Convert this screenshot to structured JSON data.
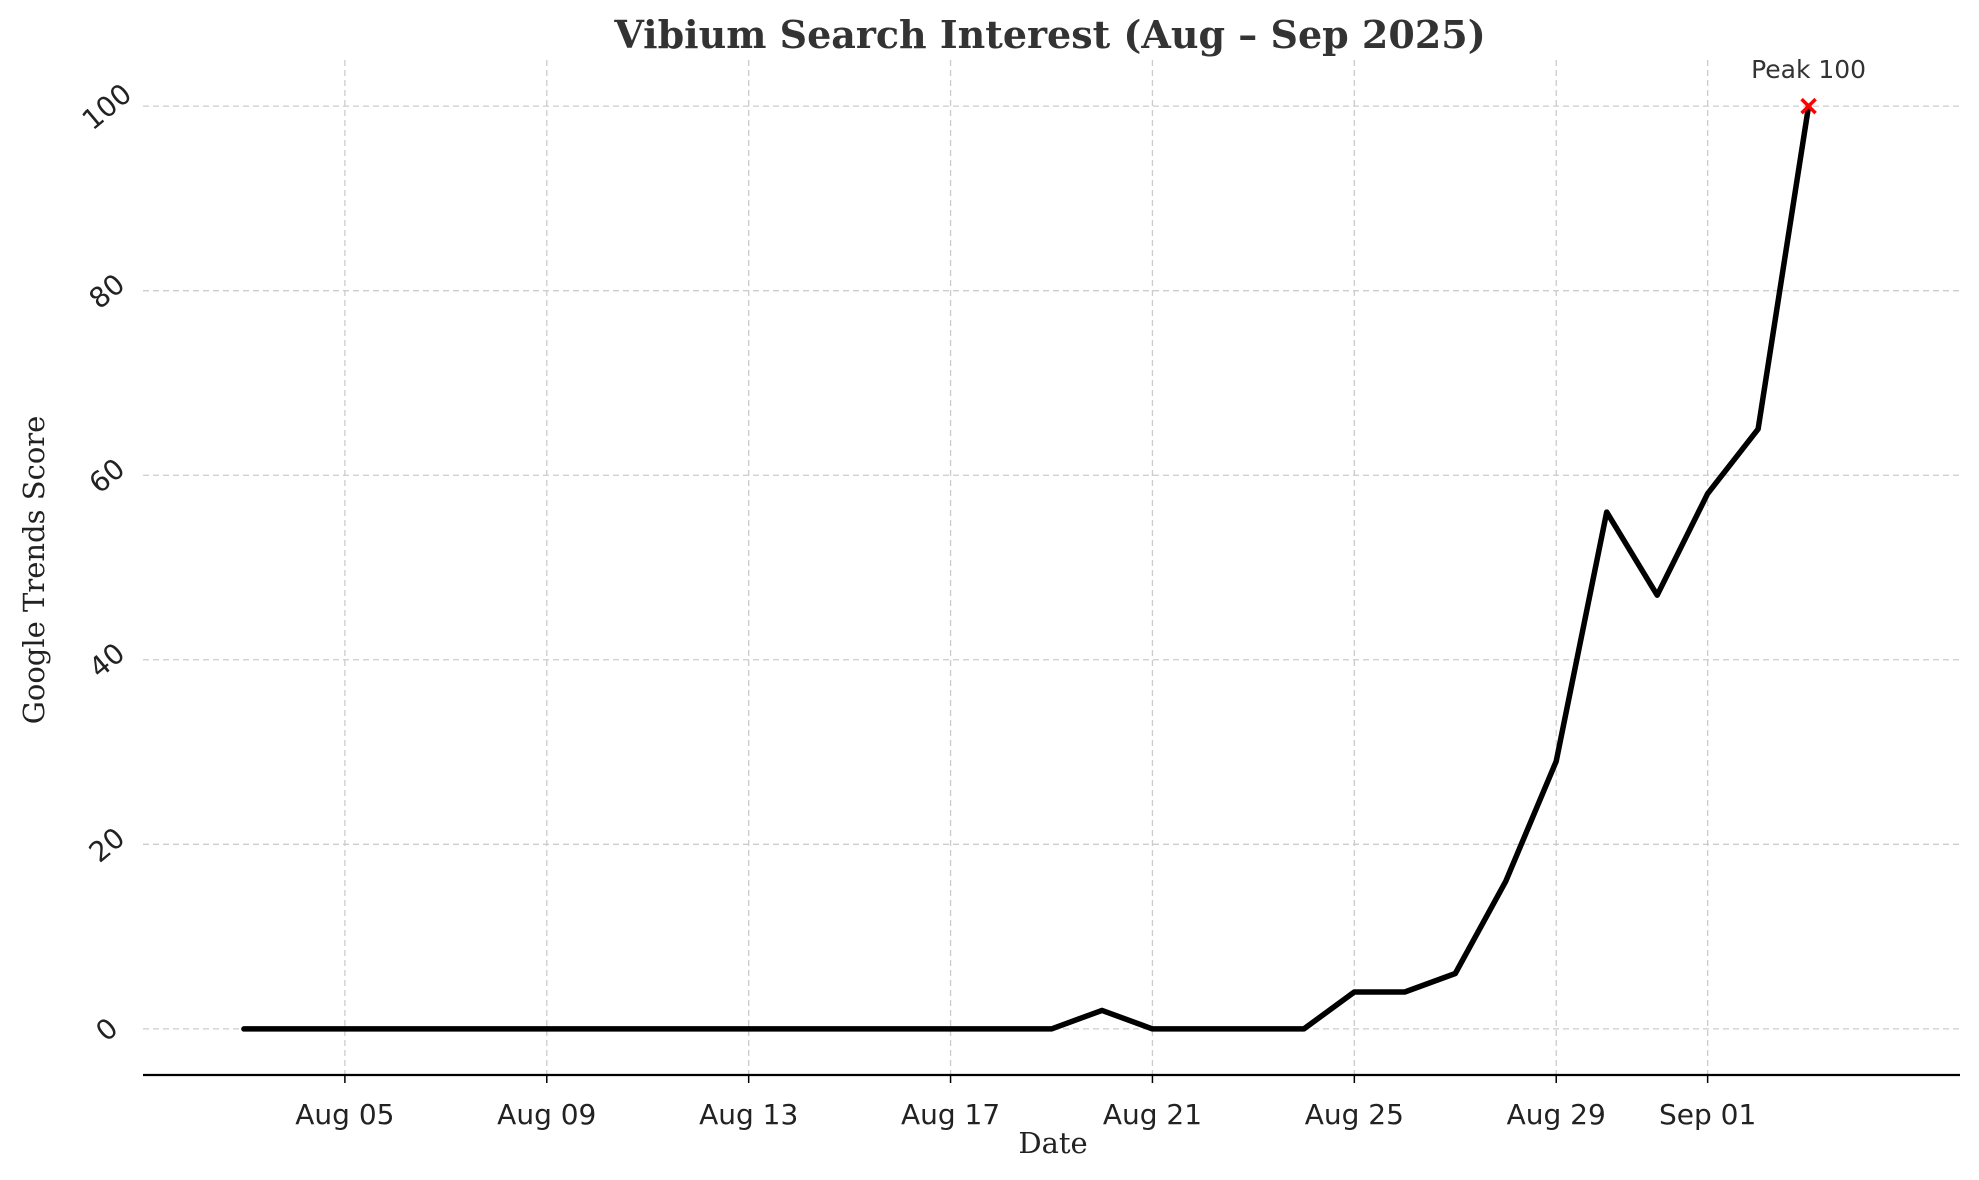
{
  "chart_data": {
    "type": "line",
    "title": "Vibium Search Interest (Aug – Sep 2025)",
    "xlabel": "Date",
    "ylabel": "Google Trends Score",
    "x": [
      "2025-08-03",
      "2025-08-04",
      "2025-08-05",
      "2025-08-06",
      "2025-08-07",
      "2025-08-08",
      "2025-08-09",
      "2025-08-10",
      "2025-08-11",
      "2025-08-12",
      "2025-08-13",
      "2025-08-14",
      "2025-08-15",
      "2025-08-16",
      "2025-08-17",
      "2025-08-18",
      "2025-08-19",
      "2025-08-20",
      "2025-08-21",
      "2025-08-22",
      "2025-08-23",
      "2025-08-24",
      "2025-08-25",
      "2025-08-26",
      "2025-08-27",
      "2025-08-28",
      "2025-08-29",
      "2025-08-30",
      "2025-08-31",
      "2025-09-01",
      "2025-09-02",
      "2025-09-03"
    ],
    "series": [
      {
        "values": [
          0,
          0,
          0,
          0,
          0,
          0,
          0,
          0,
          0,
          0,
          0,
          0,
          0,
          0,
          0,
          0,
          0,
          2,
          0,
          0,
          0,
          0,
          4,
          4,
          6,
          16,
          29,
          56,
          47,
          58,
          65,
          100
        ],
        "color": "#000000"
      }
    ],
    "xticks": [
      {
        "date": "2025-08-05",
        "label": "Aug 05"
      },
      {
        "date": "2025-08-09",
        "label": "Aug 09"
      },
      {
        "date": "2025-08-13",
        "label": "Aug 13"
      },
      {
        "date": "2025-08-17",
        "label": "Aug 17"
      },
      {
        "date": "2025-08-21",
        "label": "Aug 21"
      },
      {
        "date": "2025-08-25",
        "label": "Aug 25"
      },
      {
        "date": "2025-08-29",
        "label": "Aug 29"
      },
      {
        "date": "2025-09-01",
        "label": "Sep 01"
      }
    ],
    "yticks": [
      0,
      20,
      40,
      60,
      80,
      100
    ],
    "xlim": [
      "2025-08-01",
      "2025-09-06"
    ],
    "ylim": [
      -5,
      105
    ],
    "grid": true,
    "annotation": {
      "label": "Peak 100",
      "date": "2025-09-03",
      "value": 100,
      "marker": "x",
      "color": "#ff0000"
    }
  }
}
